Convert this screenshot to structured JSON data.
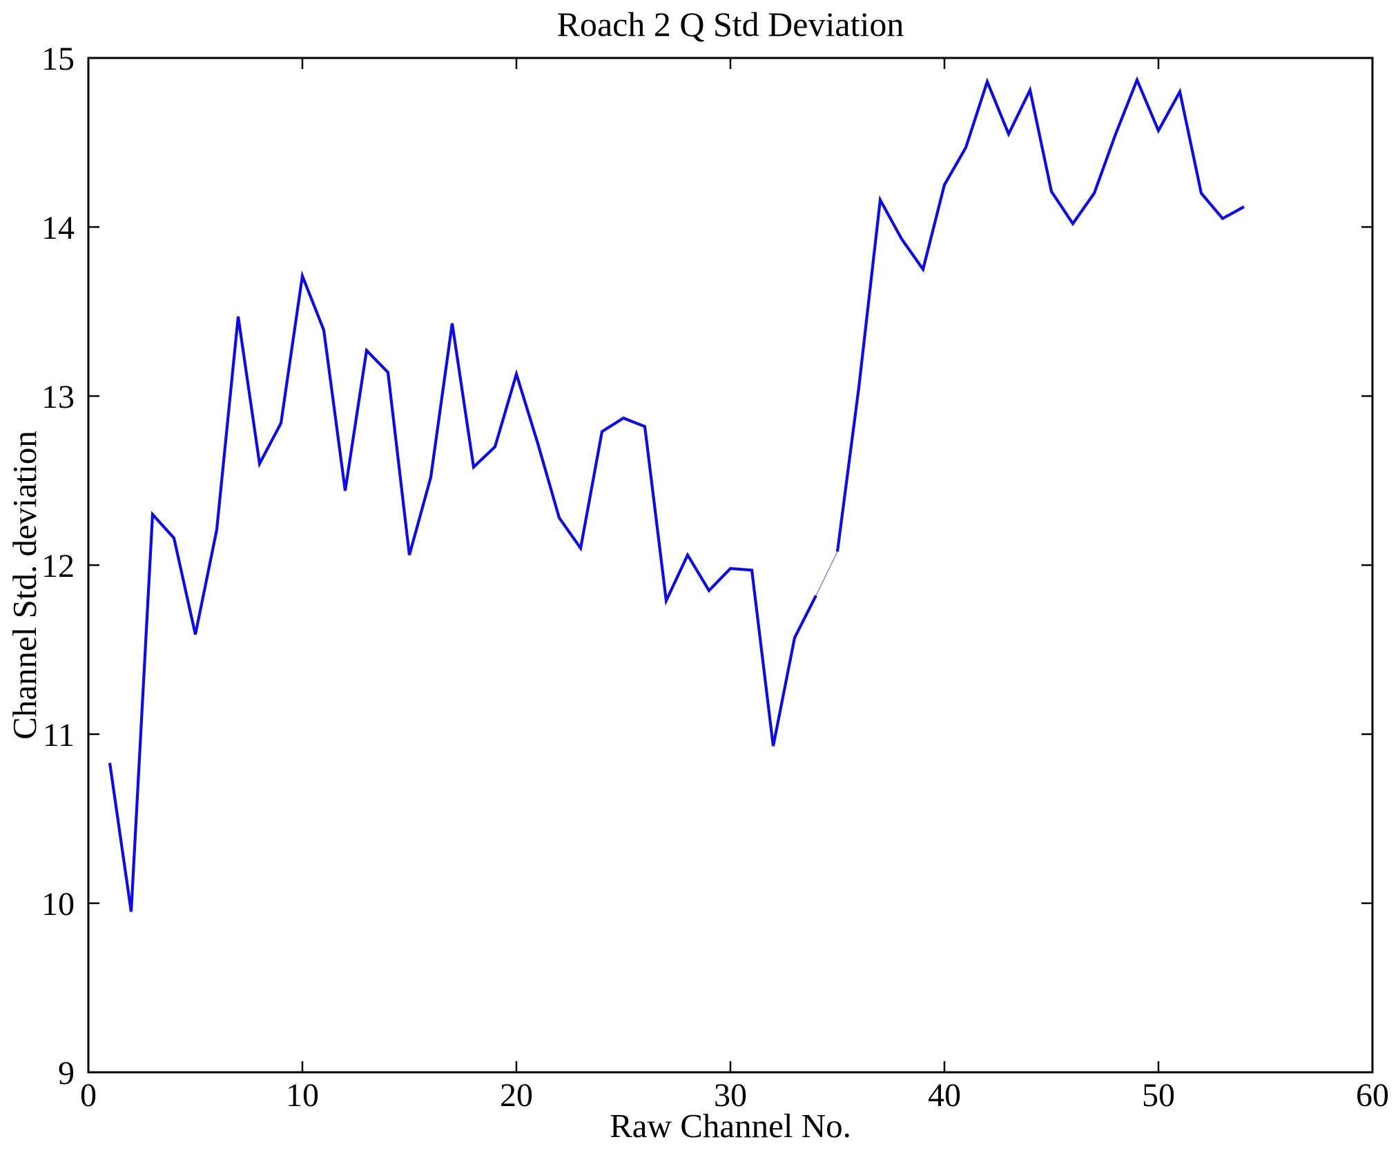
{
  "figure": {
    "background_color": "#ffffff",
    "axis_color": "#000000"
  },
  "chart_data": {
    "type": "line",
    "title": "Roach 2 Q Std Deviation",
    "xlabel": "Raw Channel No.",
    "ylabel": "Channel Std. deviation",
    "xlim": [
      0,
      60
    ],
    "ylim": [
      9,
      15
    ],
    "xticks": [
      0,
      10,
      20,
      30,
      40,
      50,
      60
    ],
    "yticks": [
      9,
      10,
      11,
      12,
      13,
      14,
      15
    ],
    "grid": false,
    "legend": "none",
    "line_color": "#0b0bee",
    "thin_artifact_color": "#8080dd",
    "thin_artifact_channels": [
      34,
      35
    ],
    "x": [
      1,
      2,
      3,
      4,
      5,
      6,
      7,
      8,
      9,
      10,
      11,
      12,
      13,
      14,
      15,
      16,
      17,
      18,
      19,
      20,
      21,
      22,
      23,
      24,
      25,
      26,
      27,
      28,
      29,
      30,
      31,
      32,
      33,
      34,
      35,
      36,
      37,
      38,
      39,
      40,
      41,
      42,
      43,
      44,
      45,
      46,
      47,
      48,
      49,
      50,
      51,
      52,
      53,
      54
    ],
    "y": [
      10.83,
      9.95,
      12.3,
      12.16,
      11.59,
      12.21,
      13.47,
      12.6,
      12.84,
      13.71,
      13.39,
      12.44,
      13.27,
      13.14,
      12.06,
      12.52,
      13.43,
      12.58,
      12.7,
      13.13,
      12.72,
      12.28,
      12.1,
      12.79,
      12.87,
      12.82,
      11.79,
      12.06,
      11.85,
      11.98,
      11.97,
      10.93,
      11.57,
      11.82,
      12.08,
      13.05,
      14.16,
      13.93,
      13.75,
      14.25,
      14.47,
      14.86,
      14.55,
      14.81,
      14.21,
      14.02,
      14.2,
      14.55,
      14.87,
      14.57,
      14.8,
      14.2,
      14.05,
      14.12
    ]
  }
}
